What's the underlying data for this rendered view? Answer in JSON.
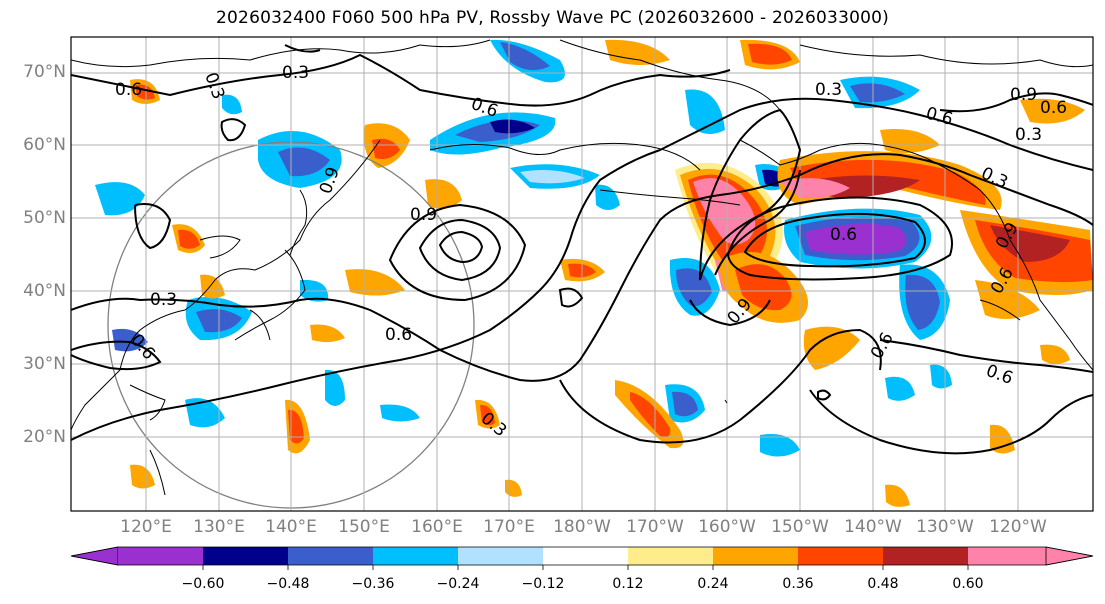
{
  "title": "2026032400 F060 500 hPa PV, Rossby Wave PC (2026032600 - 2026033000)",
  "lat_labels": [
    "70°N",
    "60°N",
    "50°N",
    "40°N",
    "30°N",
    "20°N"
  ],
  "lon_labels": [
    "120°E",
    "130°E",
    "140°E",
    "150°E",
    "160°E",
    "170°E",
    "180°W",
    "170°W",
    "160°W",
    "150°W",
    "140°W",
    "130°W",
    "120°W"
  ],
  "colorbar": {
    "levels": [
      "−0.60",
      "−0.48",
      "−0.36",
      "−0.24",
      "−0.12",
      "0.12",
      "0.24",
      "0.36",
      "0.48",
      "0.60"
    ],
    "colors": [
      "#9b30d0",
      "#00008b",
      "#3a5fcd",
      "#00bfff",
      "#b0e2ff",
      "#ffffff",
      "#ffec8b",
      "#ffa500",
      "#ff4500",
      "#b22222",
      "#ff82ab"
    ]
  },
  "contour_labels": [
    "0.6",
    "0.3",
    "0.6",
    "0.9",
    "0.9",
    "0.3",
    "0.6",
    "0.6",
    "0.3",
    "0.3",
    "0.6",
    "0.9",
    "0.3",
    "0.6",
    "0.6",
    "0.9",
    "0.6",
    "0.9",
    "0.6",
    "0.6",
    "0.3",
    "0.3"
  ]
}
